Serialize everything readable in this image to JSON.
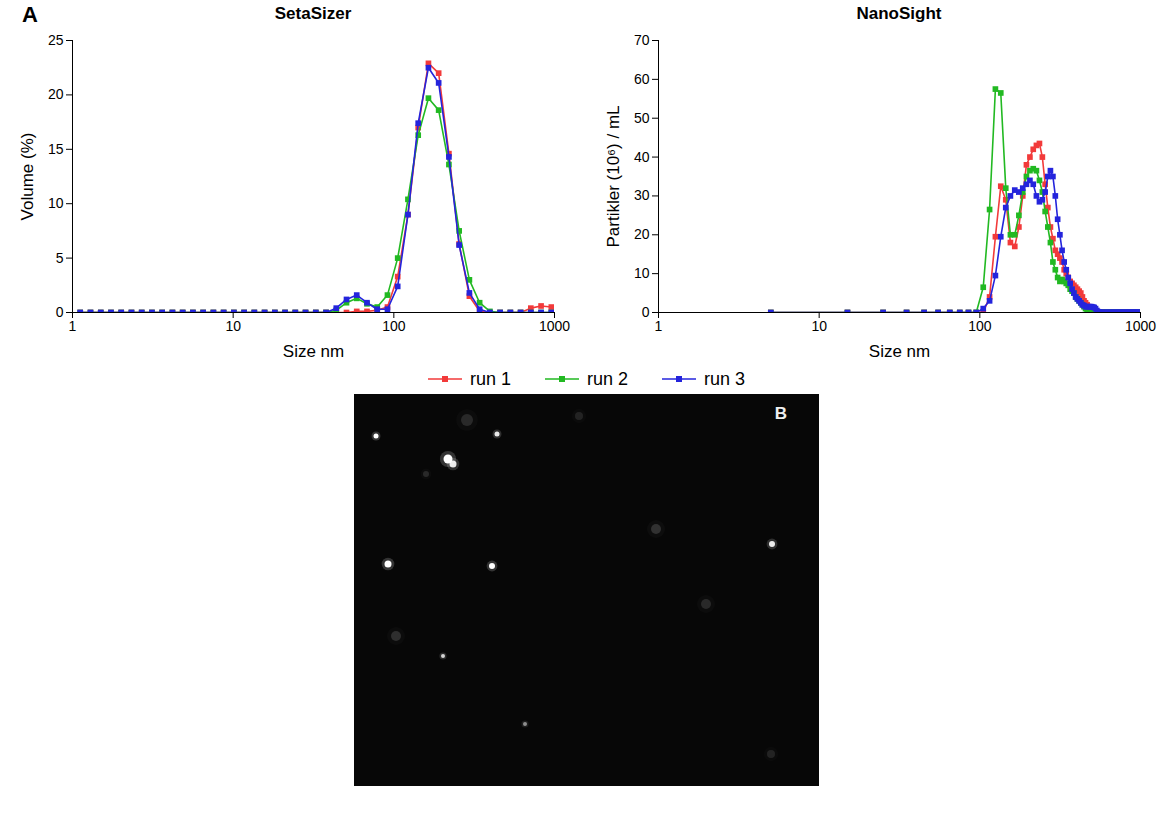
{
  "chart_data": [
    {
      "type": "line",
      "panel": "A",
      "title": "SetaSizer",
      "x_label": "Size nm",
      "y_label": "Volume (%)",
      "log": "x",
      "grid": false,
      "legend": "bottom",
      "xlim": [
        1,
        1000
      ],
      "xticks": [
        1,
        10,
        100,
        1000
      ],
      "ylim": [
        0,
        25
      ],
      "yticks": [
        0,
        5,
        10,
        15,
        20,
        25
      ],
      "x": [
        1.117,
        1.294,
        1.499,
        1.736,
        2.01,
        2.328,
        2.696,
        3.122,
        3.615,
        4.187,
        4.849,
        5.615,
        6.503,
        7.531,
        8.721,
        10.1,
        11.7,
        13.54,
        15.69,
        18.17,
        21.04,
        24.36,
        28.21,
        32.67,
        37.84,
        43.82,
        50.75,
        58.77,
        68.06,
        78.82,
        91.28,
        105.7,
        122.4,
        141.8,
        164.2,
        190.1,
        220.2,
        255,
        295.3,
        342,
        396.1,
        458.7,
        531.2,
        615.1,
        712.4,
        825,
        955.4
      ],
      "series": [
        {
          "name": "run 1",
          "color": "#f23a3a",
          "marker": "square",
          "line_style": "solid",
          "values": [
            0,
            0,
            0,
            0,
            0,
            0,
            0,
            0,
            0,
            0,
            0,
            0,
            0,
            0,
            0,
            0,
            0,
            0,
            0,
            0,
            0,
            0,
            0,
            0,
            0,
            0,
            0,
            0.1,
            0.1,
            0.2,
            0.5,
            3.3,
            9,
            17,
            22.9,
            22,
            14.6,
            6.3,
            1.5,
            0.1,
            0,
            0,
            0,
            0,
            0.4,
            0.6,
            0.5
          ]
        },
        {
          "name": "run 2",
          "color": "#22b922",
          "marker": "square",
          "line_style": "solid",
          "values": [
            0,
            0,
            0,
            0,
            0,
            0,
            0,
            0,
            0,
            0,
            0,
            0,
            0,
            0,
            0,
            0,
            0,
            0,
            0,
            0,
            0,
            0,
            0,
            0,
            0,
            0.2,
            0.9,
            1.3,
            0.8,
            0.5,
            1.6,
            5,
            10.4,
            16.3,
            19.7,
            18.6,
            13.6,
            7.5,
            3,
            0.9,
            0.1,
            0,
            0,
            0,
            0,
            0,
            0
          ]
        },
        {
          "name": "run 3",
          "color": "#2424dc",
          "marker": "square",
          "line_style": "solid",
          "values": [
            0,
            0,
            0,
            0,
            0,
            0,
            0,
            0,
            0,
            0,
            0,
            0,
            0,
            0,
            0,
            0,
            0,
            0,
            0,
            0,
            0,
            0,
            0,
            0,
            0,
            0.4,
            1.2,
            1.6,
            0.9,
            0.3,
            0.3,
            2.4,
            9,
            17.4,
            22.5,
            21.1,
            14.3,
            6.2,
            1.8,
            0.3,
            0,
            0,
            0,
            0,
            0,
            0,
            0
          ]
        }
      ]
    },
    {
      "type": "line",
      "title": "NanoSight",
      "x_label": "Size nm",
      "y_label": "Partikler (10⁶) / mL",
      "log": "x",
      "grid": false,
      "legend": "bottom",
      "xlim": [
        1,
        1000
      ],
      "xticks": [
        1,
        10,
        100,
        1000
      ],
      "ylim": [
        0,
        70
      ],
      "yticks": [
        0,
        10,
        20,
        30,
        40,
        50,
        60,
        70
      ],
      "x": [
        5,
        15,
        25,
        35,
        45,
        55,
        65,
        75,
        85,
        95,
        105,
        115,
        125,
        135,
        145,
        155,
        165,
        175,
        185,
        195,
        205,
        215,
        225,
        235,
        245,
        255,
        265,
        275,
        285,
        295,
        305,
        315,
        325,
        335,
        345,
        355,
        365,
        375,
        385,
        395,
        405,
        415,
        425,
        435,
        445,
        455,
        465,
        475,
        485,
        495,
        505,
        515,
        525,
        535,
        545,
        555,
        565,
        575,
        585,
        595,
        605,
        615,
        625,
        635,
        645,
        655,
        665,
        675,
        685,
        695,
        705,
        715,
        725,
        735,
        745,
        755,
        765,
        775,
        785,
        795,
        805,
        815,
        825,
        835,
        845,
        855,
        865,
        875,
        885,
        895,
        905,
        915,
        925,
        935,
        945,
        955,
        965,
        975,
        985,
        995
      ],
      "series": [
        {
          "name": "run 1",
          "color": "#f23a3a",
          "marker": "square",
          "line_style": "solid",
          "values": [
            0,
            0,
            0,
            0,
            0,
            0,
            0,
            0,
            0,
            0,
            0,
            4,
            19.5,
            32.5,
            29,
            18,
            17,
            22,
            30,
            38,
            40,
            42,
            43,
            43.5,
            40,
            33,
            27,
            22,
            19,
            16,
            15,
            14,
            13,
            11,
            10,
            9,
            8,
            7.5,
            7,
            6.5,
            6,
            5.5,
            5,
            4,
            3,
            2.5,
            2,
            1.5,
            1,
            0.8,
            0.5,
            0.4,
            0.3,
            0.2,
            0.1,
            0,
            0,
            0,
            0,
            0,
            0,
            0,
            0,
            0,
            0,
            0,
            0,
            0,
            0,
            0,
            0,
            0,
            0,
            0,
            0,
            0,
            0,
            0,
            0,
            0,
            0,
            0,
            0,
            0,
            0,
            0,
            0,
            0,
            0,
            0,
            0,
            0,
            0,
            0,
            0,
            0,
            0,
            0,
            0,
            0
          ]
        },
        {
          "name": "run 2",
          "color": "#22b922",
          "marker": "square",
          "line_style": "solid",
          "values": [
            0,
            0,
            0,
            0,
            0,
            0,
            0,
            0,
            0,
            0,
            6.5,
            26.5,
            57.5,
            56.5,
            32,
            20,
            20,
            25,
            31,
            35,
            36.5,
            37,
            36.5,
            34,
            31,
            26,
            22,
            18,
            13,
            11,
            9,
            8,
            8.5,
            8,
            7.5,
            7,
            6,
            5.5,
            5,
            4,
            3.5,
            3,
            2.5,
            2,
            1.5,
            1,
            0.7,
            0.5,
            0.3,
            0.2,
            0.1,
            0,
            0,
            0,
            0,
            0,
            0,
            0,
            0,
            0,
            0,
            0,
            0,
            0,
            0,
            0,
            0,
            0,
            0,
            0,
            0,
            0,
            0,
            0,
            0,
            0,
            0,
            0,
            0,
            0,
            0,
            0,
            0,
            0,
            0,
            0,
            0,
            0,
            0,
            0,
            0,
            0,
            0,
            0,
            0,
            0,
            0,
            0,
            0,
            0
          ]
        },
        {
          "name": "run 3",
          "color": "#2424dc",
          "marker": "square",
          "line_style": "solid",
          "values": [
            0,
            0,
            0,
            0,
            0,
            0,
            0,
            0,
            0,
            0,
            1,
            3,
            9.5,
            19.5,
            27,
            30,
            31.5,
            31,
            32,
            33,
            34,
            33,
            30,
            28.5,
            29,
            31,
            35,
            36.5,
            35,
            30,
            24,
            20,
            16,
            13,
            11,
            9,
            7.5,
            6,
            5,
            4,
            3.5,
            3,
            2.5,
            2,
            1.8,
            1.5,
            1.5,
            1.5,
            1.5,
            1.5,
            1.4,
            1.3,
            1,
            0.5,
            0.2,
            0.1,
            0,
            0,
            0,
            0,
            0,
            0,
            0,
            0,
            0,
            0,
            0,
            0,
            0,
            0,
            0,
            0,
            0,
            0,
            0,
            0,
            0,
            0,
            0,
            0,
            0,
            0,
            0,
            0,
            0,
            0,
            0,
            0,
            0,
            0,
            0,
            0,
            0,
            0,
            0,
            0,
            0,
            0,
            0,
            0
          ]
        }
      ]
    }
  ],
  "image": {
    "panel": "B"
  }
}
